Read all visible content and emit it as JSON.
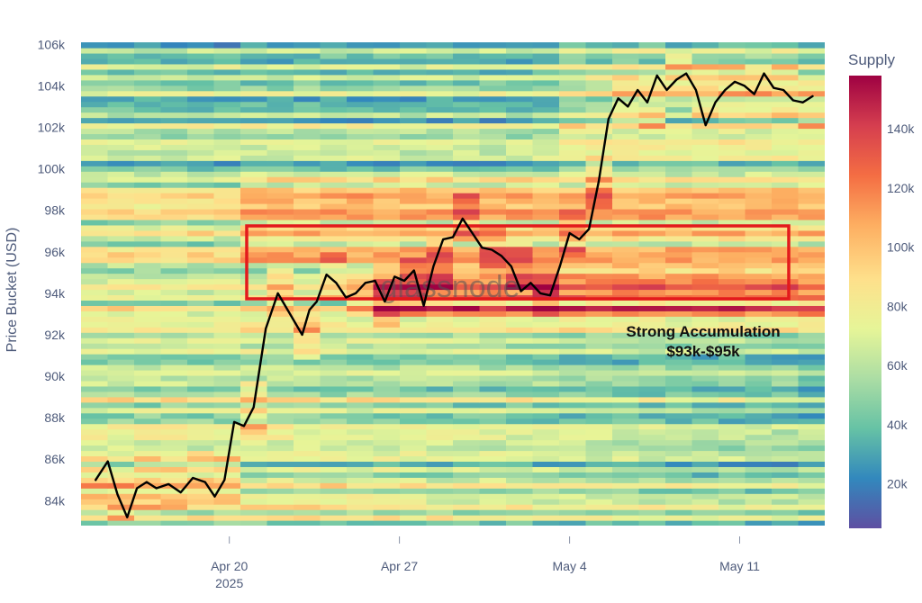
{
  "chart_data": {
    "type": "heatmap",
    "title": "",
    "ylabel": "Price Bucket (USD)",
    "xlabel": "",
    "y_ticks": [
      "84k",
      "86k",
      "88k",
      "90k",
      "92k",
      "94k",
      "96k",
      "98k",
      "100k",
      "102k",
      "104k",
      "106k"
    ],
    "y_tick_values": [
      84,
      86,
      88,
      90,
      92,
      94,
      96,
      98,
      100,
      102,
      104,
      106
    ],
    "ylim": [
      82.8,
      106.1
    ],
    "x_ticks": [
      {
        "label": "Apr 20",
        "sub": "2025"
      },
      {
        "label": "Apr 27",
        "sub": ""
      },
      {
        "label": "May 4",
        "sub": ""
      },
      {
        "label": "May 11",
        "sub": ""
      }
    ],
    "x_tick_values": [
      20,
      27,
      34,
      41
    ],
    "xlim": [
      13.9,
      44.5
    ],
    "colorbar": {
      "title": "Supply",
      "ticks": [
        "20k",
        "40k",
        "60k",
        "80k",
        "100k",
        "120k",
        "140k"
      ],
      "tick_values": [
        20,
        40,
        60,
        80,
        100,
        120,
        140
      ],
      "range": [
        5,
        158
      ],
      "colorscale": [
        "#5e4fa2",
        "#3288bd",
        "#66c2a5",
        "#abdda4",
        "#e6f598",
        "#fee08b",
        "#fdae61",
        "#f46d43",
        "#d53e4f",
        "#9e0142"
      ]
    },
    "price_series": {
      "name": "",
      "color": "#000000",
      "x": [
        14.5,
        15.0,
        15.4,
        15.8,
        16.2,
        16.6,
        17.0,
        17.5,
        18.0,
        18.5,
        19.0,
        19.4,
        19.8,
        20.2,
        20.6,
        21.0,
        21.5,
        22.0,
        22.5,
        23.0,
        23.3,
        23.6,
        24.0,
        24.4,
        24.8,
        25.2,
        25.6,
        26.0,
        26.4,
        26.8,
        27.2,
        27.6,
        28.0,
        28.4,
        28.8,
        29.2,
        29.6,
        30.0,
        30.4,
        30.8,
        31.2,
        31.6,
        32.0,
        32.4,
        32.8,
        33.2,
        33.6,
        34.0,
        34.4,
        34.8,
        35.2,
        35.6,
        36.0,
        36.4,
        36.8,
        37.2,
        37.6,
        38.0,
        38.4,
        38.8,
        39.2,
        39.6,
        40.0,
        40.4,
        40.8,
        41.2,
        41.6,
        42.0,
        42.4,
        42.8,
        43.2,
        43.6,
        44.0
      ],
      "y": [
        85.0,
        85.9,
        84.3,
        83.2,
        84.6,
        84.9,
        84.6,
        84.8,
        84.4,
        85.1,
        84.9,
        84.2,
        85.0,
        87.8,
        87.6,
        88.5,
        92.3,
        94.0,
        93.0,
        92.0,
        93.2,
        93.6,
        94.9,
        94.5,
        93.8,
        94.0,
        94.5,
        94.6,
        93.6,
        94.8,
        94.6,
        95.1,
        93.4,
        95.3,
        96.6,
        96.7,
        97.6,
        96.9,
        96.2,
        96.1,
        95.8,
        95.3,
        94.1,
        94.5,
        94.0,
        93.9,
        95.3,
        96.9,
        96.6,
        97.1,
        99.4,
        102.4,
        103.4,
        103.0,
        103.8,
        103.2,
        104.5,
        103.8,
        104.3,
        104.6,
        103.8,
        102.1,
        103.2,
        103.8,
        104.2,
        104.0,
        103.6,
        104.6,
        103.9,
        103.8,
        103.3,
        103.2,
        103.5
      ]
    },
    "annotations": [
      {
        "text": "Strong Accumulation"
      },
      {
        "text": "$93k-$95k"
      }
    ],
    "highlight_box": {
      "x0": 21.7,
      "x1": 44.6,
      "y0": 93.0,
      "y1": 96.5,
      "color": "#e31a1c"
    },
    "watermark": "glassnode",
    "grid": false
  }
}
